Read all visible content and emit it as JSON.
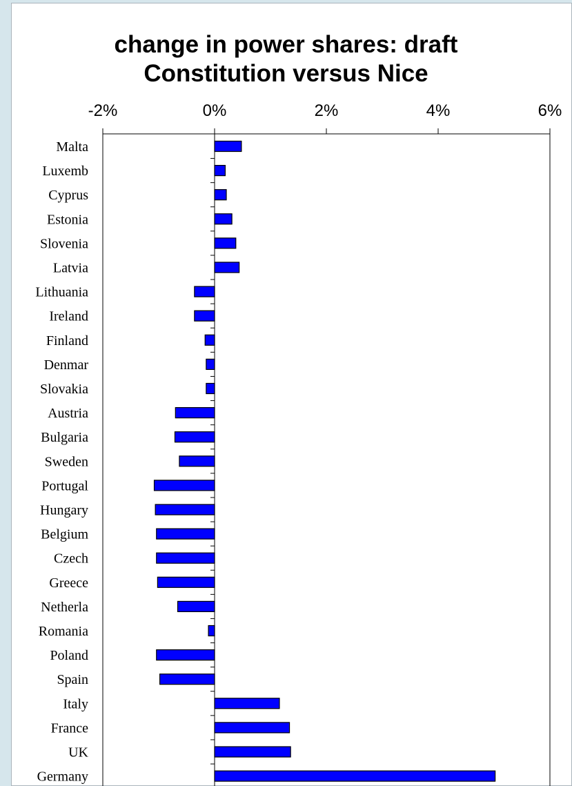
{
  "chart_data": {
    "type": "bar",
    "orientation": "horizontal",
    "title": "change in power shares: draft Constitution versus Nice",
    "title_lines": [
      "change in power shares: draft",
      "Constitution versus Nice"
    ],
    "xlabel": "",
    "ylabel": "",
    "xlim": [
      -2,
      6
    ],
    "x_ticks": [
      -2,
      0,
      2,
      4,
      6
    ],
    "x_tick_labels": [
      "-2%",
      "0%",
      "2%",
      "4%",
      "6%"
    ],
    "x_axis_position": "top",
    "grid": false,
    "legend": "none",
    "categories": [
      "Malta",
      "Luxemb",
      "Cyprus",
      "Estonia",
      "Slovenia",
      "Latvia",
      "Lithuania",
      "Ireland",
      "Finland",
      "Denmar",
      "Slovakia",
      "Austria",
      "Bulgaria",
      "Sweden",
      "Portugal",
      "Hungary",
      "Belgium",
      "Czech",
      "Greece",
      "Netherla",
      "Romania",
      "Poland",
      "Spain",
      "Italy",
      "France",
      "UK",
      "Germany"
    ],
    "values": [
      0.48,
      0.19,
      0.21,
      0.31,
      0.38,
      0.44,
      -0.36,
      -0.36,
      -0.17,
      -0.15,
      -0.15,
      -0.7,
      -0.71,
      -0.63,
      -1.08,
      -1.06,
      -1.04,
      -1.04,
      -1.02,
      -0.66,
      -0.11,
      -1.04,
      -0.98,
      1.16,
      1.34,
      1.36,
      5.02
    ],
    "unit": "%",
    "colors": {
      "bar_fill": "#0000ff",
      "bar_stroke": "#000000",
      "background": "#d6e6ec",
      "panel": "#ffffff"
    }
  }
}
